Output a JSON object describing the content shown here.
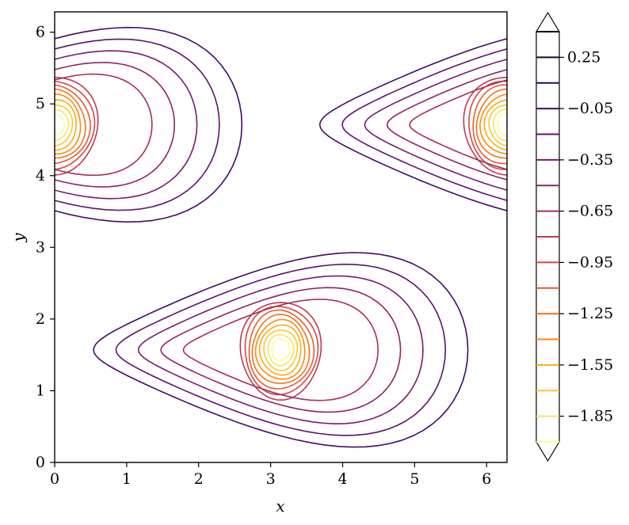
{
  "chart_data": {
    "type": "contour",
    "xlabel": "x",
    "ylabel": "y",
    "xlim": [
      0,
      6.2832
    ],
    "ylim": [
      0,
      6.2832
    ],
    "x_ticks": [
      0,
      1,
      2,
      3,
      4,
      5,
      6
    ],
    "y_ticks": [
      0,
      1,
      2,
      3,
      4,
      5,
      6
    ],
    "colormap": "inferno",
    "colorbar": {
      "levels": [
        0.4,
        0.25,
        0.1,
        -0.05,
        -0.2,
        -0.35,
        -0.5,
        -0.65,
        -0.8,
        -0.95,
        -1.1,
        -1.25,
        -1.4,
        -1.55,
        -1.7,
        -1.85,
        -2.0
      ],
      "labeled_ticks": [
        "0.25",
        "−0.05",
        "−0.35",
        "−0.65",
        "−0.95",
        "−1.25",
        "−1.55",
        "−1.85"
      ],
      "labeled_values": [
        0.25,
        -0.05,
        -0.35,
        -0.65,
        -0.95,
        -1.25,
        -1.55,
        -1.85
      ],
      "extend": "both"
    },
    "vortices": [
      {
        "x": 3.14,
        "y": 1.57,
        "rx": 0.56,
        "ry": 0.68,
        "min_level": -2.0
      },
      {
        "x": 0.0,
        "y": 4.71,
        "rx": 0.6,
        "ry": 0.68,
        "min_level": -2.0
      },
      {
        "x": 6.2832,
        "y": 4.71,
        "rx": 0.6,
        "ry": 0.68,
        "min_level": -2.0
      }
    ],
    "level_colors": [
      "#000004",
      "#1b0c41",
      "#4a0c6b",
      "#781c6d",
      "#a52c60",
      "#cf4446",
      "#ed6925",
      "#fb9b06",
      "#f7d13d",
      "#fcffa4"
    ]
  }
}
